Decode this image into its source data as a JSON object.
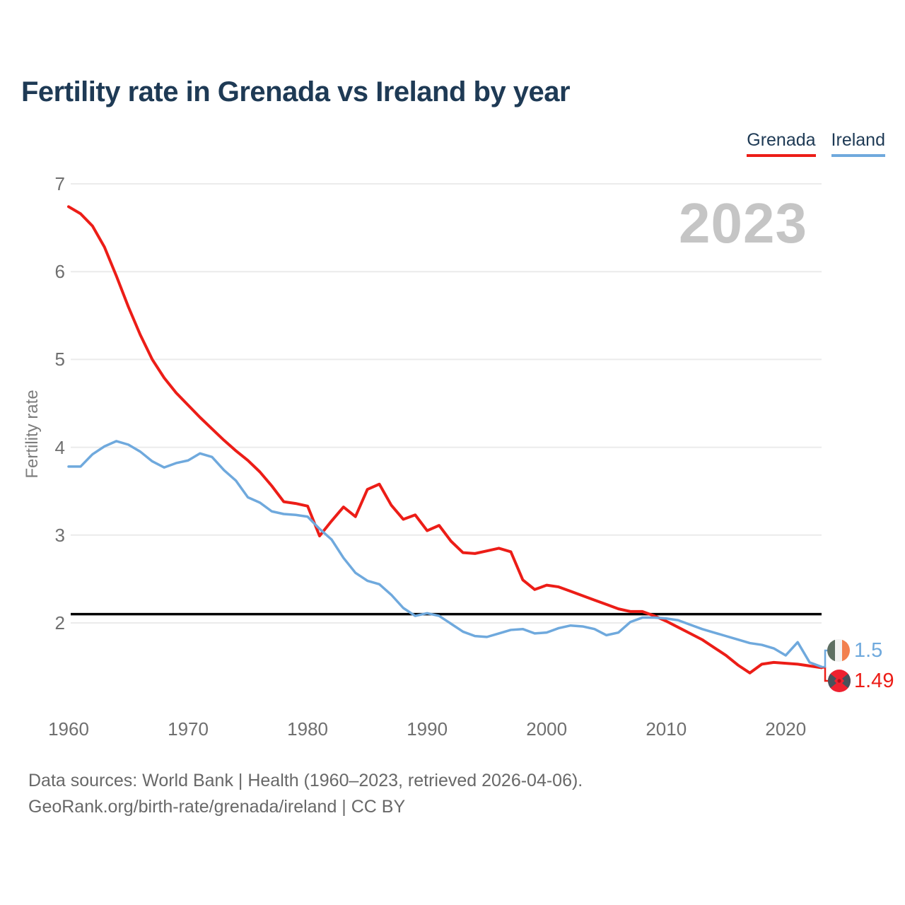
{
  "title": "Fertility rate in Grenada vs Ireland by year",
  "watermark": "2023",
  "legend": [
    {
      "label": "Grenada",
      "color": "#ec1d17"
    },
    {
      "label": "Ireland",
      "color": "#6fa9dd"
    }
  ],
  "y_axis": {
    "label": "Fertility rate",
    "ticks": [
      7,
      6,
      5,
      4,
      3,
      2
    ]
  },
  "x_axis": {
    "ticks": [
      1960,
      1970,
      1980,
      1990,
      2000,
      2010,
      2020
    ]
  },
  "reference_line": {
    "value": 2.1,
    "color": "#000000"
  },
  "end_labels": [
    {
      "series": "Ireland",
      "value": "1.5",
      "color": "#6fa9dd",
      "flag": "ireland-flag"
    },
    {
      "series": "Grenada",
      "value": "1.49",
      "color": "#ec1d17",
      "flag": "grenada-flag"
    }
  ],
  "footer": {
    "line1": "Data sources: World Bank | Health (1960–2023, retrieved 2026-04-06).",
    "line2": "GeoRank.org/birth-rate/grenada/ireland | CC BY"
  },
  "chart_data": {
    "type": "line",
    "title": "Fertility rate in Grenada vs Ireland by year",
    "xlabel": "",
    "ylabel": "Fertility rate",
    "xlim": [
      1960,
      2023
    ],
    "ylim": [
      1.35,
      7.1
    ],
    "grid": "horizontal",
    "legend_position": "top-right",
    "annotations": {
      "replacement_level": 2.1,
      "year_watermark": "2023"
    },
    "x": [
      1960,
      1961,
      1962,
      1963,
      1964,
      1965,
      1966,
      1967,
      1968,
      1969,
      1970,
      1971,
      1972,
      1973,
      1974,
      1975,
      1976,
      1977,
      1978,
      1979,
      1980,
      1981,
      1982,
      1983,
      1984,
      1985,
      1986,
      1987,
      1988,
      1989,
      1990,
      1991,
      1992,
      1993,
      1994,
      1995,
      1996,
      1997,
      1998,
      1999,
      2000,
      2001,
      2002,
      2003,
      2004,
      2005,
      2006,
      2007,
      2008,
      2009,
      2010,
      2011,
      2012,
      2013,
      2014,
      2015,
      2016,
      2017,
      2018,
      2019,
      2020,
      2021,
      2022,
      2023
    ],
    "series": [
      {
        "name": "Grenada",
        "color": "#ec1d17",
        "end_value": 1.49,
        "values": [
          6.74,
          6.66,
          6.52,
          6.28,
          5.95,
          5.6,
          5.28,
          5.0,
          4.79,
          4.62,
          4.48,
          4.34,
          4.21,
          4.08,
          3.96,
          3.85,
          3.72,
          3.56,
          3.38,
          3.36,
          3.33,
          2.99,
          3.16,
          3.32,
          3.21,
          3.52,
          3.58,
          3.34,
          3.18,
          3.23,
          3.05,
          3.11,
          2.93,
          2.8,
          2.79,
          2.82,
          2.85,
          2.81,
          2.49,
          2.38,
          2.43,
          2.41,
          2.36,
          2.31,
          2.26,
          2.21,
          2.16,
          2.13,
          2.13,
          2.08,
          2.02,
          1.95,
          1.88,
          1.81,
          1.72,
          1.63,
          1.52,
          1.43,
          1.53,
          1.55,
          1.54,
          1.53,
          1.51,
          1.49
        ]
      },
      {
        "name": "Ireland",
        "color": "#6fa9dd",
        "end_value": 1.5,
        "values": [
          3.78,
          3.78,
          3.92,
          4.01,
          4.07,
          4.03,
          3.95,
          3.84,
          3.77,
          3.82,
          3.85,
          3.93,
          3.89,
          3.74,
          3.62,
          3.43,
          3.37,
          3.27,
          3.24,
          3.23,
          3.21,
          3.07,
          2.95,
          2.74,
          2.57,
          2.48,
          2.44,
          2.32,
          2.17,
          2.08,
          2.11,
          2.08,
          1.99,
          1.9,
          1.85,
          1.84,
          1.88,
          1.92,
          1.93,
          1.88,
          1.89,
          1.94,
          1.97,
          1.96,
          1.93,
          1.86,
          1.89,
          2.01,
          2.06,
          2.06,
          2.05,
          2.03,
          1.98,
          1.93,
          1.89,
          1.85,
          1.81,
          1.77,
          1.75,
          1.71,
          1.63,
          1.78,
          1.55,
          1.5
        ]
      }
    ]
  }
}
